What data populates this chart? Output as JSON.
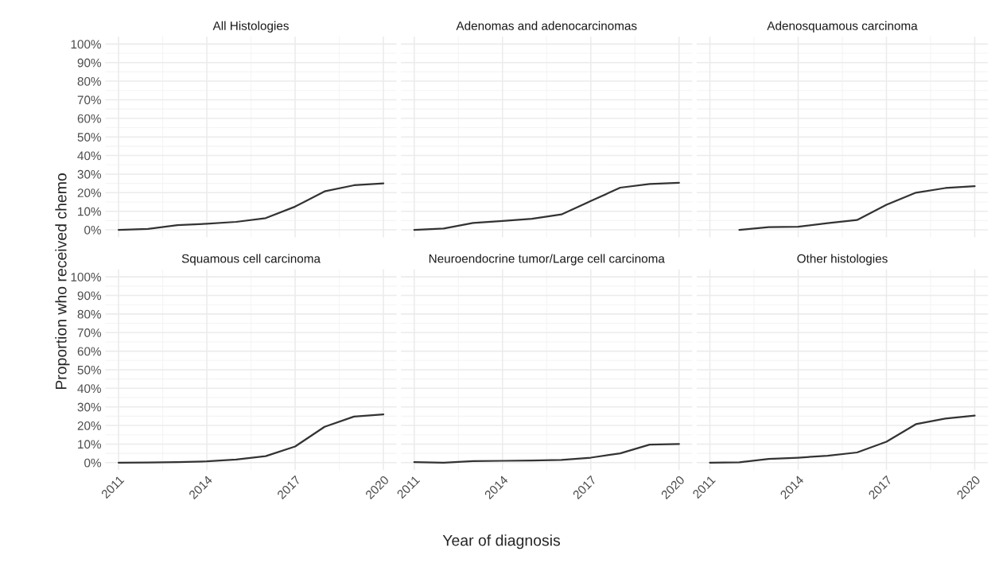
{
  "chart_data": [
    {
      "type": "line",
      "title": "All Histologies",
      "ylabel": "Proportion who received chemo",
      "x": [
        2011,
        2012,
        2013,
        2014,
        2015,
        2016,
        2017,
        2018,
        2019,
        2020
      ],
      "series": [
        {
          "color": "#333333",
          "values": [
            0,
            0.5,
            2.5,
            3.3,
            4.3,
            6.3,
            12.5,
            20.7,
            24,
            25
          ]
        }
      ],
      "xlim": [
        2010.55,
        2020.45
      ],
      "ylim": [
        -4,
        104
      ],
      "xticks": [
        2011,
        2014,
        2017,
        2020
      ],
      "yticks": [
        {
          "value": 0,
          "label": "0%"
        },
        {
          "value": 10,
          "label": "10%"
        },
        {
          "value": 20,
          "label": "20%"
        },
        {
          "value": 30,
          "label": "30%"
        },
        {
          "value": 40,
          "label": "40%"
        },
        {
          "value": 50,
          "label": "50%"
        },
        {
          "value": 60,
          "label": "60%"
        },
        {
          "value": 70,
          "label": "70%"
        },
        {
          "value": 80,
          "label": "80%"
        },
        {
          "value": 90,
          "label": "90%"
        },
        {
          "value": 100,
          "label": "100%"
        }
      ],
      "grid": true,
      "tick_labels": "y"
    },
    {
      "type": "line",
      "title": "Adenomas and adenocarcinomas",
      "x": [
        2011,
        2012,
        2013,
        2014,
        2015,
        2016,
        2017,
        2018,
        2019,
        2020
      ],
      "series": [
        {
          "color": "#333333",
          "values": [
            0,
            0.7,
            3.7,
            4.8,
            6,
            8.3,
            15.5,
            22.7,
            24.7,
            25.3
          ]
        }
      ],
      "xlim": [
        2010.55,
        2020.45
      ],
      "ylim": [
        -4,
        104
      ],
      "xticks": [
        2011,
        2014,
        2017,
        2020
      ],
      "yticks": [
        0,
        10,
        20,
        30,
        40,
        50,
        60,
        70,
        80,
        90,
        100
      ],
      "grid": true,
      "tick_labels": false
    },
    {
      "type": "line",
      "title": "Adenosquamous carcinoma",
      "series": [
        {
          "color": "#333333",
          "x": [
            2012,
            2013,
            2014,
            2015,
            2016,
            2017,
            2018,
            2019,
            2020
          ],
          "values": [
            0,
            1.5,
            1.7,
            3.6,
            5.3,
            13.5,
            20,
            22.5,
            23.5
          ]
        }
      ],
      "xlim": [
        2010.55,
        2020.45
      ],
      "ylim": [
        -4,
        104
      ],
      "xticks": [
        2011,
        2014,
        2017,
        2020
      ],
      "yticks": [
        0,
        10,
        20,
        30,
        40,
        50,
        60,
        70,
        80,
        90,
        100
      ],
      "grid": true,
      "tick_labels": false
    },
    {
      "type": "line",
      "title": "Squamous cell carcinoma",
      "x": [
        2011,
        2012,
        2013,
        2014,
        2015,
        2016,
        2017,
        2018,
        2019,
        2020
      ],
      "series": [
        {
          "color": "#333333",
          "values": [
            0,
            0.1,
            0.3,
            0.7,
            1.7,
            3.5,
            8.7,
            19.3,
            24.8,
            26
          ]
        }
      ],
      "xlim": [
        2010.55,
        2020.45
      ],
      "ylim": [
        -4,
        104
      ],
      "xticks": [
        2011,
        2014,
        2017,
        2020
      ],
      "yticks": [
        {
          "value": 0,
          "label": "0%"
        },
        {
          "value": 10,
          "label": "10%"
        },
        {
          "value": 20,
          "label": "20%"
        },
        {
          "value": 30,
          "label": "30%"
        },
        {
          "value": 40,
          "label": "40%"
        },
        {
          "value": 50,
          "label": "50%"
        },
        {
          "value": 60,
          "label": "60%"
        },
        {
          "value": 70,
          "label": "70%"
        },
        {
          "value": 80,
          "label": "80%"
        },
        {
          "value": 90,
          "label": "90%"
        },
        {
          "value": 100,
          "label": "100%"
        }
      ],
      "grid": true
    },
    {
      "type": "line",
      "title": "Neuroendocrine tumor/Large cell carcinoma",
      "xlabel": "Year of diagnosis",
      "x": [
        2011,
        2012,
        2013,
        2014,
        2015,
        2016,
        2017,
        2018,
        2019,
        2020
      ],
      "series": [
        {
          "color": "#333333",
          "values": [
            0.3,
            0,
            0.8,
            1,
            1.2,
            1.5,
            2.7,
            5,
            9.7,
            10
          ]
        }
      ],
      "xlim": [
        2010.55,
        2020.45
      ],
      "ylim": [
        -4,
        104
      ],
      "xticks": [
        2011,
        2014,
        2017,
        2020
      ],
      "yticks": [
        0,
        10,
        20,
        30,
        40,
        50,
        60,
        70,
        80,
        90,
        100
      ],
      "grid": true,
      "tick_labels": "x"
    },
    {
      "type": "line",
      "title": "Other histologies",
      "x": [
        2011,
        2012,
        2013,
        2014,
        2015,
        2016,
        2017,
        2018,
        2019,
        2020
      ],
      "series": [
        {
          "color": "#333333",
          "values": [
            0,
            0.2,
            2,
            2.7,
            3.7,
            5.5,
            11.3,
            20.7,
            23.7,
            25.3
          ]
        }
      ],
      "xlim": [
        2010.55,
        2020.45
      ],
      "ylim": [
        -4,
        104
      ],
      "xticks": [
        2011,
        2014,
        2017,
        2020
      ],
      "yticks": [
        0,
        10,
        20,
        30,
        40,
        50,
        60,
        70,
        80,
        90,
        100
      ],
      "grid": true,
      "tick_labels": "x"
    }
  ]
}
